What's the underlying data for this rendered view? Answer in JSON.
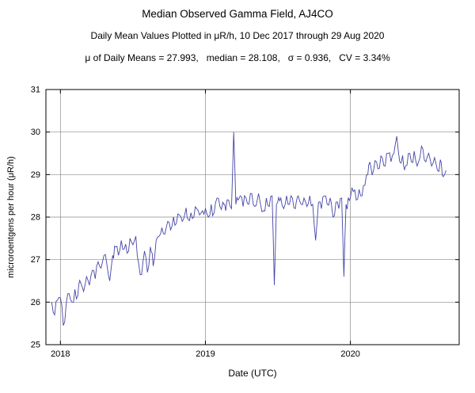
{
  "page": {
    "title": "Median Observed Gamma Field, AJ4CO",
    "subtitle": "Daily Mean Values Plotted in μR/h, 10 Dec 2017 through 29 Aug 2020",
    "stats_line": "μ of Daily Means = 27.993,   median = 28.108,   σ = 0.936,   CV = 3.34%"
  },
  "chart_data": {
    "type": "line",
    "title": "Median Observed Gamma Field, AJ4CO",
    "subtitle": "Daily Mean Values Plotted in μR/h, 10 Dec 2017 through 29 Aug 2020",
    "stats": {
      "mean_of_daily_means": 27.993,
      "median": 28.108,
      "sigma": 0.936,
      "cv_percent": 3.34
    },
    "date_range": "10 Dec 2017 through 29 Aug 2020",
    "xlabel": "Date (UTC)",
    "ylabel": "microroentgens per hour (μR/h)",
    "xlim": [
      2017.9,
      2020.75
    ],
    "ylim": [
      25,
      31
    ],
    "x_ticks": [
      2018,
      2019,
      2020
    ],
    "x_tick_labels": [
      "2018",
      "2019",
      "2020"
    ],
    "y_ticks": [
      25,
      26,
      27,
      28,
      29,
      30,
      31
    ],
    "grid": true,
    "legend": "none",
    "line_color": "#4444a8",
    "grid_color": "#8a8a8a",
    "frame_color": "#000000",
    "noise_amplitude": 0.17,
    "noise_seed": 7,
    "series": [
      {
        "name": "daily-mean-gamma",
        "points": [
          [
            2017.94,
            26.0
          ],
          [
            2017.96,
            25.7
          ],
          [
            2017.98,
            26.05
          ],
          [
            2018.0,
            26.1
          ],
          [
            2018.02,
            25.45
          ],
          [
            2018.04,
            25.95
          ],
          [
            2018.06,
            26.2
          ],
          [
            2018.08,
            26.0
          ],
          [
            2018.1,
            26.3
          ],
          [
            2018.12,
            26.15
          ],
          [
            2018.14,
            26.45
          ],
          [
            2018.16,
            26.25
          ],
          [
            2018.18,
            26.6
          ],
          [
            2018.2,
            26.4
          ],
          [
            2018.22,
            26.75
          ],
          [
            2018.24,
            26.55
          ],
          [
            2018.26,
            26.95
          ],
          [
            2018.28,
            26.8
          ],
          [
            2018.3,
            27.1
          ],
          [
            2018.32,
            26.9
          ],
          [
            2018.34,
            26.5
          ],
          [
            2018.36,
            27.1
          ],
          [
            2018.38,
            27.3
          ],
          [
            2018.4,
            27.1
          ],
          [
            2018.42,
            27.45
          ],
          [
            2018.44,
            27.25
          ],
          [
            2018.46,
            27.15
          ],
          [
            2018.48,
            27.5
          ],
          [
            2018.5,
            27.35
          ],
          [
            2018.52,
            27.55
          ],
          [
            2018.54,
            26.9
          ],
          [
            2018.56,
            26.65
          ],
          [
            2018.58,
            27.2
          ],
          [
            2018.6,
            26.7
          ],
          [
            2018.62,
            27.3
          ],
          [
            2018.64,
            26.85
          ],
          [
            2018.66,
            27.45
          ],
          [
            2018.68,
            27.55
          ],
          [
            2018.7,
            27.75
          ],
          [
            2018.72,
            27.6
          ],
          [
            2018.74,
            27.9
          ],
          [
            2018.76,
            27.7
          ],
          [
            2018.78,
            28.0
          ],
          [
            2018.8,
            27.85
          ],
          [
            2018.82,
            28.05
          ],
          [
            2018.84,
            27.9
          ],
          [
            2018.86,
            28.1
          ],
          [
            2018.88,
            27.95
          ],
          [
            2018.9,
            28.1
          ],
          [
            2018.92,
            28.0
          ],
          [
            2018.94,
            28.2
          ],
          [
            2018.96,
            28.05
          ],
          [
            2018.98,
            28.15
          ],
          [
            2019.0,
            28.2
          ],
          [
            2019.02,
            28.0
          ],
          [
            2019.04,
            28.3
          ],
          [
            2019.06,
            28.1
          ],
          [
            2019.08,
            28.45
          ],
          [
            2019.1,
            28.25
          ],
          [
            2019.12,
            28.35
          ],
          [
            2019.14,
            28.15
          ],
          [
            2019.16,
            28.4
          ],
          [
            2019.18,
            28.2
          ],
          [
            2019.195,
            30.0
          ],
          [
            2019.21,
            28.3
          ],
          [
            2019.24,
            28.5
          ],
          [
            2019.26,
            28.25
          ],
          [
            2019.28,
            28.45
          ],
          [
            2019.3,
            28.3
          ],
          [
            2019.32,
            28.55
          ],
          [
            2019.34,
            28.25
          ],
          [
            2019.36,
            28.45
          ],
          [
            2019.38,
            28.3
          ],
          [
            2019.4,
            28.15
          ],
          [
            2019.42,
            28.45
          ],
          [
            2019.44,
            28.25
          ],
          [
            2019.46,
            28.5
          ],
          [
            2019.475,
            26.4
          ],
          [
            2019.49,
            28.3
          ],
          [
            2019.52,
            28.45
          ],
          [
            2019.54,
            28.2
          ],
          [
            2019.56,
            28.5
          ],
          [
            2019.58,
            28.3
          ],
          [
            2019.6,
            28.45
          ],
          [
            2019.62,
            28.2
          ],
          [
            2019.64,
            28.5
          ],
          [
            2019.66,
            28.3
          ],
          [
            2019.68,
            28.45
          ],
          [
            2019.7,
            28.25
          ],
          [
            2019.72,
            28.5
          ],
          [
            2019.74,
            28.3
          ],
          [
            2019.76,
            27.45
          ],
          [
            2019.78,
            28.35
          ],
          [
            2019.8,
            28.2
          ],
          [
            2019.82,
            28.5
          ],
          [
            2019.84,
            28.3
          ],
          [
            2019.86,
            28.45
          ],
          [
            2019.88,
            28.0
          ],
          [
            2019.9,
            28.35
          ],
          [
            2019.92,
            28.2
          ],
          [
            2019.94,
            28.45
          ],
          [
            2019.955,
            26.6
          ],
          [
            2019.97,
            28.3
          ],
          [
            2020.0,
            28.45
          ],
          [
            2020.02,
            28.6
          ],
          [
            2020.04,
            28.4
          ],
          [
            2020.06,
            28.65
          ],
          [
            2020.08,
            28.5
          ],
          [
            2020.1,
            28.75
          ],
          [
            2020.12,
            29.0
          ],
          [
            2020.14,
            29.2
          ],
          [
            2020.16,
            29.1
          ],
          [
            2020.18,
            29.3
          ],
          [
            2020.2,
            29.15
          ],
          [
            2020.22,
            29.4
          ],
          [
            2020.24,
            29.2
          ],
          [
            2020.26,
            29.5
          ],
          [
            2020.28,
            29.3
          ],
          [
            2020.3,
            29.5
          ],
          [
            2020.32,
            29.9
          ],
          [
            2020.34,
            29.3
          ],
          [
            2020.36,
            29.45
          ],
          [
            2020.38,
            29.2
          ],
          [
            2020.4,
            29.5
          ],
          [
            2020.42,
            29.3
          ],
          [
            2020.44,
            29.55
          ],
          [
            2020.46,
            29.2
          ],
          [
            2020.48,
            29.4
          ],
          [
            2020.5,
            29.6
          ],
          [
            2020.52,
            29.3
          ],
          [
            2020.54,
            29.5
          ],
          [
            2020.56,
            29.2
          ],
          [
            2020.58,
            29.4
          ],
          [
            2020.6,
            29.1
          ],
          [
            2020.62,
            29.35
          ],
          [
            2020.64,
            28.95
          ],
          [
            2020.66,
            29.1
          ]
        ]
      }
    ]
  }
}
